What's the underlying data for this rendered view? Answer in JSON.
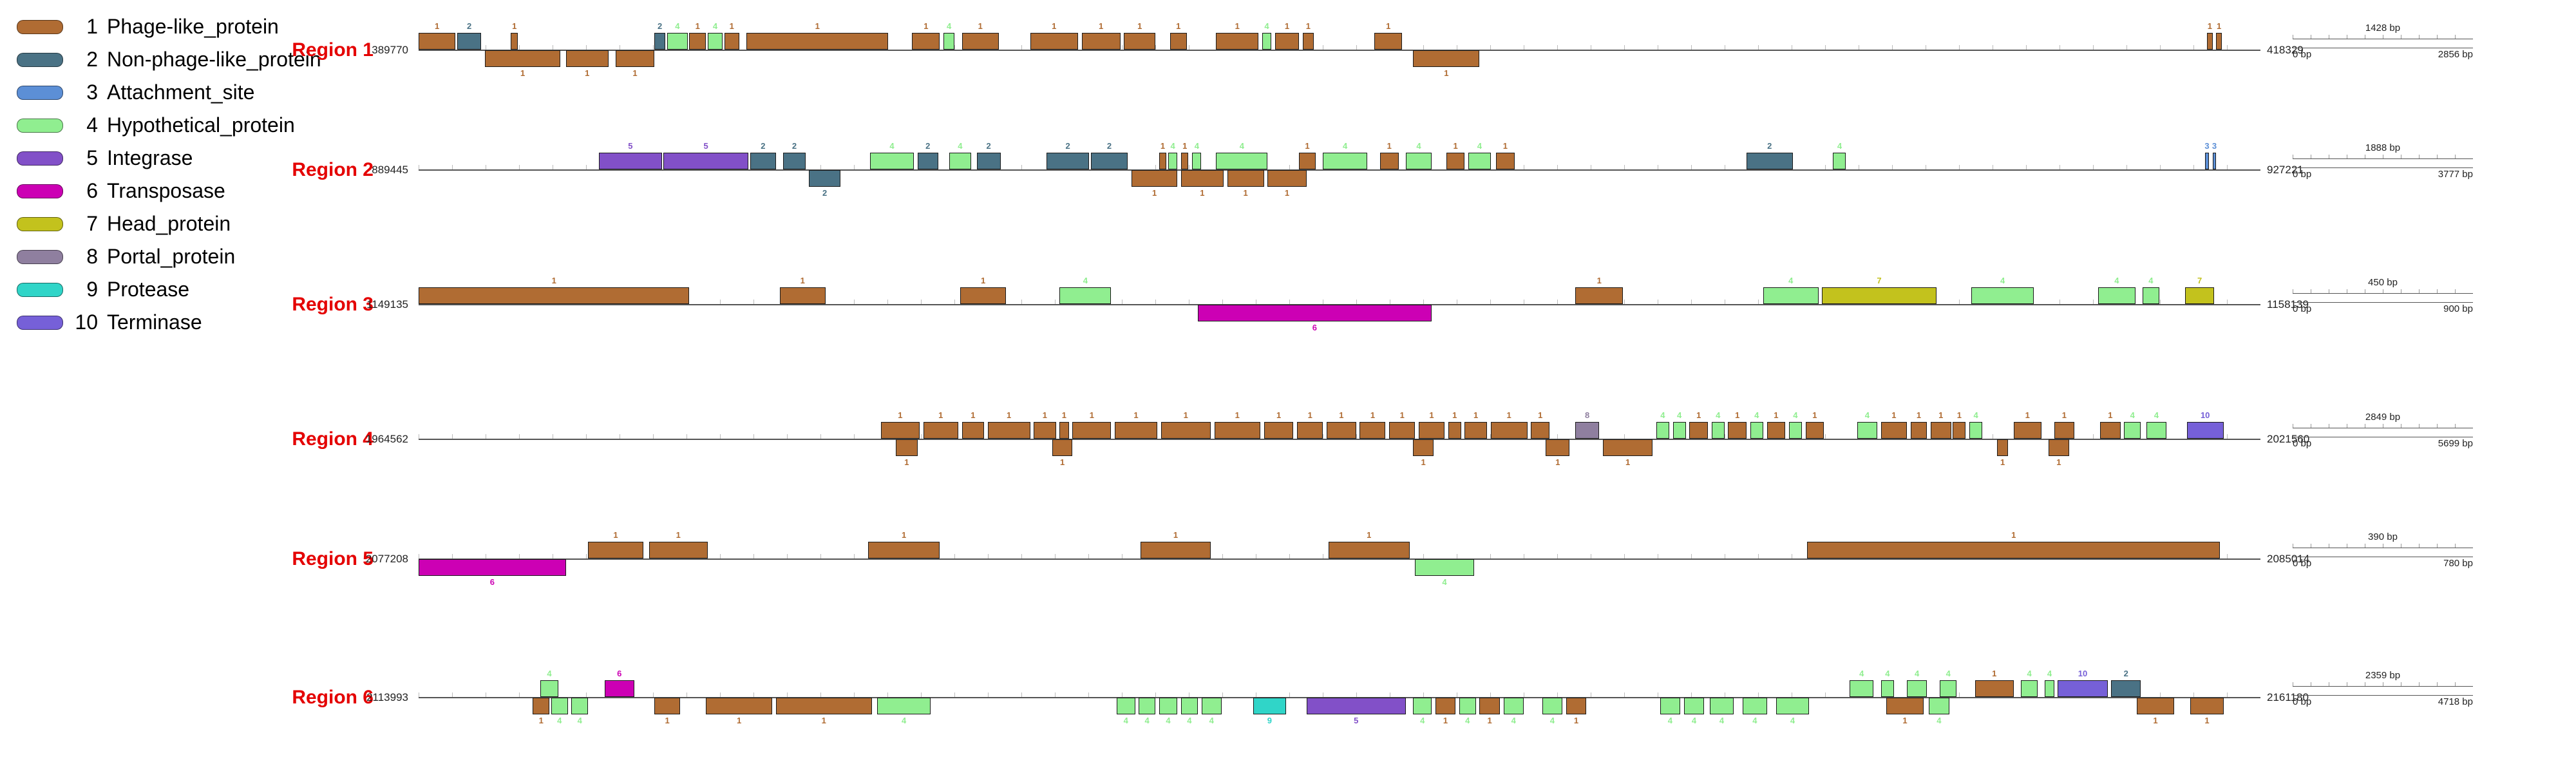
{
  "ui": {
    "region_label_color": "#e40000",
    "background": "#ffffff"
  },
  "legend": {
    "items": [
      {
        "num": "1",
        "label": "Phage-like_protein",
        "color": "#b06c33"
      },
      {
        "num": "2",
        "label": "Non-phage-like_protein",
        "color": "#4a7285"
      },
      {
        "num": "3",
        "label": "Attachment_site",
        "color": "#5c8fd6"
      },
      {
        "num": "4",
        "label": "Hypothetical_protein",
        "color": "#90ee90"
      },
      {
        "num": "5",
        "label": "Integrase",
        "color": "#8250c8"
      },
      {
        "num": "6",
        "label": "Transposase",
        "color": "#cc00b4"
      },
      {
        "num": "7",
        "label": "Head_protein",
        "color": "#c3c21d"
      },
      {
        "num": "8",
        "label": "Portal_protein",
        "color": "#8f7f9f"
      },
      {
        "num": "9",
        "label": "Protease",
        "color": "#30d5c8"
      },
      {
        "num": "10",
        "label": "Terminase",
        "color": "#7660d8"
      }
    ]
  },
  "regions": [
    {
      "name": "Region 1",
      "start": "389770",
      "end": "418329",
      "scale": {
        "half": "1428 bp",
        "start": "0 bp",
        "end": "2856 bp"
      },
      "genes": [
        [
          0.0,
          0.02,
          "+",
          1
        ],
        [
          0.021,
          0.013,
          "+",
          2
        ],
        [
          0.05,
          0.004,
          "+",
          1
        ],
        [
          0.128,
          0.006,
          "+",
          2
        ],
        [
          0.135,
          0.011,
          "+",
          4
        ],
        [
          0.147,
          0.009,
          "+",
          1
        ],
        [
          0.157,
          0.008,
          "+",
          4
        ],
        [
          0.166,
          0.008,
          "+",
          1
        ],
        [
          0.178,
          0.077,
          "+",
          1
        ],
        [
          0.268,
          0.015,
          "+",
          1
        ],
        [
          0.285,
          0.006,
          "+",
          4
        ],
        [
          0.295,
          0.02,
          "+",
          1
        ],
        [
          0.332,
          0.026,
          "+",
          1
        ],
        [
          0.36,
          0.021,
          "+",
          1
        ],
        [
          0.383,
          0.017,
          "+",
          1
        ],
        [
          0.408,
          0.009,
          "+",
          1
        ],
        [
          0.433,
          0.023,
          "+",
          1
        ],
        [
          0.458,
          0.005,
          "+",
          4
        ],
        [
          0.465,
          0.013,
          "+",
          1
        ],
        [
          0.48,
          0.006,
          "+",
          1
        ],
        [
          0.519,
          0.015,
          "+",
          1
        ],
        [
          0.971,
          0.003,
          "+",
          1
        ],
        [
          0.976,
          0.003,
          "+",
          1
        ],
        [
          0.036,
          0.041,
          "-",
          1
        ],
        [
          0.08,
          0.023,
          "-",
          1
        ],
        [
          0.107,
          0.021,
          "-",
          1
        ],
        [
          0.54,
          0.036,
          "-",
          1
        ]
      ]
    },
    {
      "name": "Region 2",
      "start": "889445",
      "end": "927221",
      "scale": {
        "half": "1888 bp",
        "start": "0 bp",
        "end": "3777 bp"
      },
      "genes": [
        [
          0.098,
          0.034,
          "+",
          5
        ],
        [
          0.133,
          0.046,
          "+",
          5
        ],
        [
          0.18,
          0.014,
          "+",
          2
        ],
        [
          0.198,
          0.012,
          "+",
          2
        ],
        [
          0.245,
          0.024,
          "+",
          4
        ],
        [
          0.271,
          0.011,
          "+",
          2
        ],
        [
          0.288,
          0.012,
          "+",
          4
        ],
        [
          0.303,
          0.013,
          "+",
          2
        ],
        [
          0.341,
          0.023,
          "+",
          2
        ],
        [
          0.365,
          0.02,
          "+",
          2
        ],
        [
          0.402,
          0.004,
          "+",
          1
        ],
        [
          0.407,
          0.005,
          "+",
          4
        ],
        [
          0.414,
          0.004,
          "+",
          1
        ],
        [
          0.42,
          0.005,
          "+",
          4
        ],
        [
          0.433,
          0.028,
          "+",
          4
        ],
        [
          0.478,
          0.009,
          "+",
          1
        ],
        [
          0.491,
          0.024,
          "+",
          4
        ],
        [
          0.522,
          0.01,
          "+",
          1
        ],
        [
          0.536,
          0.014,
          "+",
          4
        ],
        [
          0.558,
          0.01,
          "+",
          1
        ],
        [
          0.57,
          0.012,
          "+",
          4
        ],
        [
          0.585,
          0.01,
          "+",
          1
        ],
        [
          0.721,
          0.025,
          "+",
          2
        ],
        [
          0.768,
          0.007,
          "+",
          4
        ],
        [
          0.97,
          0.002,
          "+",
          3
        ],
        [
          0.974,
          0.002,
          "+",
          3
        ],
        [
          0.212,
          0.017,
          "-",
          2
        ],
        [
          0.387,
          0.025,
          "-",
          1
        ],
        [
          0.414,
          0.023,
          "-",
          1
        ],
        [
          0.439,
          0.02,
          "-",
          1
        ],
        [
          0.461,
          0.021,
          "-",
          1
        ]
      ]
    },
    {
      "name": "Region 3",
      "start": "1149135",
      "end": "1158139",
      "scale": {
        "half": "450 bp",
        "start": "0 bp",
        "end": "900 bp"
      },
      "genes": [
        [
          0.0,
          0.147,
          "+",
          1
        ],
        [
          0.196,
          0.025,
          "+",
          1
        ],
        [
          0.294,
          0.025,
          "+",
          1
        ],
        [
          0.348,
          0.028,
          "+",
          4
        ],
        [
          0.628,
          0.026,
          "+",
          1
        ],
        [
          0.73,
          0.03,
          "+",
          4
        ],
        [
          0.762,
          0.062,
          "+",
          7
        ],
        [
          0.843,
          0.034,
          "+",
          4
        ],
        [
          0.912,
          0.02,
          "+",
          4
        ],
        [
          0.936,
          0.009,
          "+",
          4
        ],
        [
          0.959,
          0.016,
          "+",
          7
        ],
        [
          0.423,
          0.127,
          "-",
          6
        ]
      ]
    },
    {
      "name": "Region 4",
      "start": "1964562",
      "end": "2021560",
      "scale": {
        "half": "2849 bp",
        "start": "0 bp",
        "end": "5699 bp"
      },
      "genes": [
        [
          0.251,
          0.021,
          "+",
          1
        ],
        [
          0.274,
          0.019,
          "+",
          1
        ],
        [
          0.295,
          0.012,
          "+",
          1
        ],
        [
          0.309,
          0.023,
          "+",
          1
        ],
        [
          0.334,
          0.012,
          "+",
          1
        ],
        [
          0.348,
          0.005,
          "+",
          1
        ],
        [
          0.355,
          0.021,
          "+",
          1
        ],
        [
          0.378,
          0.023,
          "+",
          1
        ],
        [
          0.403,
          0.027,
          "+",
          1
        ],
        [
          0.432,
          0.025,
          "+",
          1
        ],
        [
          0.459,
          0.016,
          "+",
          1
        ],
        [
          0.477,
          0.014,
          "+",
          1
        ],
        [
          0.493,
          0.016,
          "+",
          1
        ],
        [
          0.511,
          0.014,
          "+",
          1
        ],
        [
          0.527,
          0.014,
          "+",
          1
        ],
        [
          0.543,
          0.014,
          "+",
          1
        ],
        [
          0.559,
          0.007,
          "+",
          1
        ],
        [
          0.568,
          0.012,
          "+",
          1
        ],
        [
          0.582,
          0.02,
          "+",
          1
        ],
        [
          0.604,
          0.01,
          "+",
          1
        ],
        [
          0.628,
          0.013,
          "+",
          8
        ],
        [
          0.672,
          0.007,
          "+",
          4
        ],
        [
          0.681,
          0.007,
          "+",
          4
        ],
        [
          0.69,
          0.01,
          "+",
          1
        ],
        [
          0.702,
          0.007,
          "+",
          4
        ],
        [
          0.711,
          0.01,
          "+",
          1
        ],
        [
          0.723,
          0.007,
          "+",
          4
        ],
        [
          0.732,
          0.01,
          "+",
          1
        ],
        [
          0.744,
          0.007,
          "+",
          4
        ],
        [
          0.753,
          0.01,
          "+",
          1
        ],
        [
          0.781,
          0.011,
          "+",
          4
        ],
        [
          0.794,
          0.014,
          "+",
          1
        ],
        [
          0.81,
          0.009,
          "+",
          1
        ],
        [
          0.821,
          0.011,
          "+",
          1
        ],
        [
          0.833,
          0.007,
          "+",
          1
        ],
        [
          0.842,
          0.007,
          "+",
          4
        ],
        [
          0.866,
          0.015,
          "+",
          1
        ],
        [
          0.888,
          0.011,
          "+",
          1
        ],
        [
          0.913,
          0.011,
          "+",
          1
        ],
        [
          0.926,
          0.009,
          "+",
          4
        ],
        [
          0.938,
          0.011,
          "+",
          4
        ],
        [
          0.96,
          0.02,
          "+",
          10
        ],
        [
          0.259,
          0.012,
          "-",
          1
        ],
        [
          0.344,
          0.011,
          "-",
          1
        ],
        [
          0.54,
          0.011,
          "-",
          1
        ],
        [
          0.612,
          0.013,
          "-",
          1
        ],
        [
          0.643,
          0.027,
          "-",
          1
        ],
        [
          0.857,
          0.006,
          "-",
          1
        ],
        [
          0.885,
          0.011,
          "-",
          1
        ]
      ]
    },
    {
      "name": "Region 5",
      "start": "2077208",
      "end": "2085014",
      "scale": {
        "half": "390 bp",
        "start": "0 bp",
        "end": "780 bp"
      },
      "genes": [
        [
          0.092,
          0.03,
          "+",
          1
        ],
        [
          0.125,
          0.032,
          "+",
          1
        ],
        [
          0.244,
          0.039,
          "+",
          1
        ],
        [
          0.392,
          0.038,
          "+",
          1
        ],
        [
          0.494,
          0.044,
          "+",
          1
        ],
        [
          0.754,
          0.224,
          "+",
          1
        ],
        [
          0.0,
          0.08,
          "-",
          6
        ],
        [
          0.541,
          0.032,
          "-",
          4
        ]
      ]
    },
    {
      "name": "Region 6",
      "start": "2113993",
      "end": "2161180",
      "scale": {
        "half": "2359 bp",
        "start": "0 bp",
        "end": "4718 bp"
      },
      "genes": [
        [
          0.066,
          0.01,
          "+",
          4
        ],
        [
          0.101,
          0.016,
          "+",
          6
        ],
        [
          0.777,
          0.013,
          "+",
          4
        ],
        [
          0.794,
          0.007,
          "+",
          4
        ],
        [
          0.808,
          0.011,
          "+",
          4
        ],
        [
          0.826,
          0.009,
          "+",
          4
        ],
        [
          0.845,
          0.021,
          "+",
          1
        ],
        [
          0.87,
          0.009,
          "+",
          4
        ],
        [
          0.883,
          0.005,
          "+",
          4
        ],
        [
          0.89,
          0.027,
          "+",
          10
        ],
        [
          0.919,
          0.016,
          "+",
          2
        ],
        [
          0.062,
          0.009,
          "-",
          1
        ],
        [
          0.072,
          0.009,
          "-",
          4
        ],
        [
          0.083,
          0.009,
          "-",
          4
        ],
        [
          0.128,
          0.014,
          "-",
          1
        ],
        [
          0.156,
          0.036,
          "-",
          1
        ],
        [
          0.194,
          0.052,
          "-",
          1
        ],
        [
          0.249,
          0.029,
          "-",
          4
        ],
        [
          0.379,
          0.01,
          "-",
          4
        ],
        [
          0.391,
          0.009,
          "-",
          4
        ],
        [
          0.402,
          0.01,
          "-",
          4
        ],
        [
          0.414,
          0.009,
          "-",
          4
        ],
        [
          0.425,
          0.011,
          "-",
          4
        ],
        [
          0.453,
          0.018,
          "-",
          9
        ],
        [
          0.482,
          0.054,
          "-",
          5
        ],
        [
          0.54,
          0.01,
          "-",
          4
        ],
        [
          0.552,
          0.011,
          "-",
          1
        ],
        [
          0.565,
          0.009,
          "-",
          4
        ],
        [
          0.576,
          0.011,
          "-",
          1
        ],
        [
          0.589,
          0.011,
          "-",
          4
        ],
        [
          0.61,
          0.011,
          "-",
          4
        ],
        [
          0.623,
          0.011,
          "-",
          1
        ],
        [
          0.674,
          0.011,
          "-",
          4
        ],
        [
          0.687,
          0.011,
          "-",
          4
        ],
        [
          0.701,
          0.013,
          "-",
          4
        ],
        [
          0.719,
          0.013,
          "-",
          4
        ],
        [
          0.737,
          0.018,
          "-",
          4
        ],
        [
          0.797,
          0.02,
          "-",
          1
        ],
        [
          0.82,
          0.011,
          "-",
          4
        ],
        [
          0.933,
          0.02,
          "-",
          1
        ],
        [
          0.962,
          0.018,
          "-",
          1
        ]
      ]
    }
  ]
}
